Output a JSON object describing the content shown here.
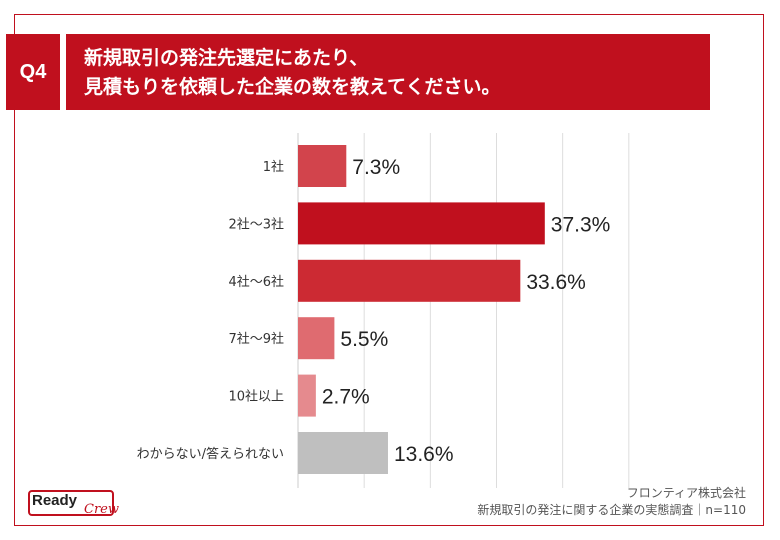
{
  "question": {
    "badge": "Q4",
    "line1": "新規取引の発注先選定にあたり、",
    "line2": "見積もりを依頼した企業の数を教えてください。"
  },
  "chart_data": {
    "type": "bar",
    "orientation": "horizontal",
    "categories": [
      "1社",
      "2社～3社",
      "4社～6社",
      "7社～9社",
      "10社以上",
      "わからない/答えられない"
    ],
    "values": [
      7.3,
      37.3,
      33.6,
      5.5,
      2.7,
      13.6
    ],
    "value_labels": [
      "7.3%",
      "37.3%",
      "33.6%",
      "5.5%",
      "2.7%",
      "13.6%"
    ],
    "colors": [
      "#d2444c",
      "#c0101e",
      "#cc2a33",
      "#df6b70",
      "#e58a8e",
      "#bfbfbf"
    ],
    "xlim": [
      0,
      60
    ],
    "grid": true,
    "title": "",
    "xlabel": "",
    "ylabel": ""
  },
  "source": {
    "company": "フロンティア株式会社",
    "survey": "新規取引の発注に関する企業の実態調査｜n=110"
  },
  "logo": {
    "word1": "Ready",
    "word2": "Crew"
  }
}
